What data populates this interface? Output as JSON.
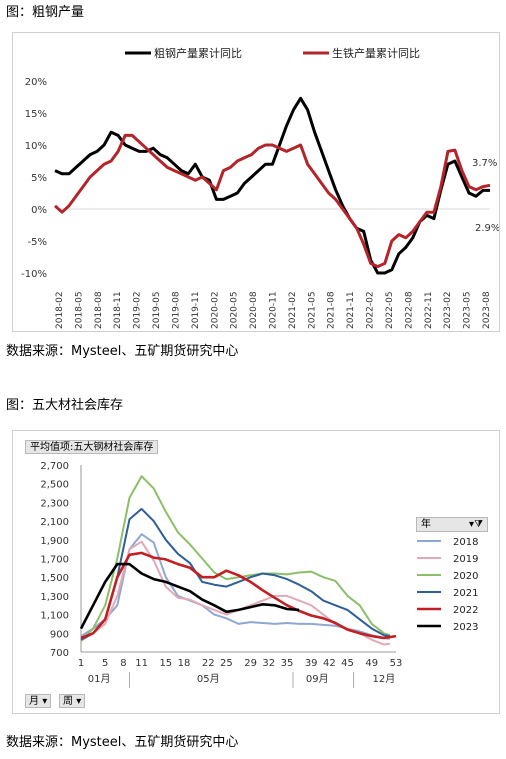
{
  "figure1": {
    "caption": "图：粗钢产量",
    "source": "数据来源：Mysteel、五矿期货研究中心"
  },
  "figure2": {
    "caption": "图：五大材社会库存",
    "source": "数据来源：Mysteel、五矿期货研究中心",
    "pivot_title": "平均值项:五大钢材社会库存",
    "legend_header": "年",
    "field_buttons": [
      "月",
      "周"
    ],
    "month_labels": [
      "01月",
      "05月",
      "09月",
      "12月"
    ]
  },
  "chart_data": [
    {
      "type": "line",
      "title": "",
      "ylim": [
        -10,
        20
      ],
      "yticks": [
        "20%",
        "15%",
        "10%",
        "5%",
        "0%",
        "-5%",
        "-10%"
      ],
      "xtick_labels": [
        "2018-02",
        "2018-05",
        "2018-08",
        "2018-11",
        "2019-02",
        "2019-05",
        "2019-08",
        "2019-11",
        "2020-02",
        "2020-05",
        "2020-08",
        "2020-11",
        "2021-02",
        "2021-05",
        "2021-08",
        "2021-11",
        "2022-02",
        "2022-05",
        "2022-08",
        "2022-11",
        "2023-02",
        "2023-05",
        "2023-08"
      ],
      "legend": "top",
      "annotations": [
        "3.7%",
        "2.9%"
      ],
      "series": [
        {
          "name": "粗钢产量累计同比",
          "color": "#000000",
          "values": [
            6.0,
            5.5,
            5.5,
            6.5,
            7.5,
            8.5,
            9.0,
            10.0,
            12.0,
            11.5,
            10.0,
            9.5,
            9.0,
            9.0,
            9.5,
            8.5,
            8.0,
            7.0,
            6.0,
            5.5,
            7.0,
            5.0,
            4.5,
            1.5,
            1.5,
            2.0,
            2.5,
            4.0,
            5.0,
            6.0,
            7.0,
            7.0,
            10.0,
            13.0,
            15.5,
            17.3,
            15.5,
            12.0,
            9.0,
            6.0,
            3.0,
            0.5,
            -1.5,
            -3.0,
            -3.5,
            -8.0,
            -10.0,
            -10.0,
            -9.5,
            -7.0,
            -6.0,
            -4.5,
            -2.0,
            -1.0,
            -1.5,
            3.0,
            7.0,
            7.5,
            5.0,
            2.5,
            2.0,
            2.9,
            2.9
          ]
        },
        {
          "name": "生铁产量累计同比",
          "color": "#b3242b",
          "values": [
            0.5,
            -0.5,
            0.5,
            2.0,
            3.5,
            5.0,
            6.0,
            7.0,
            7.5,
            9.0,
            11.5,
            11.5,
            10.5,
            9.5,
            8.5,
            7.5,
            6.5,
            6.0,
            5.5,
            5.0,
            4.5,
            5.0,
            4.0,
            3.0,
            6.0,
            6.5,
            7.5,
            8.0,
            8.5,
            9.5,
            10.0,
            10.0,
            9.5,
            9.0,
            9.5,
            10.0,
            7.0,
            5.5,
            4.0,
            2.5,
            1.5,
            0.0,
            -1.5,
            -3.0,
            -5.5,
            -8.5,
            -9.0,
            -8.5,
            -5.0,
            -4.0,
            -4.5,
            -3.5,
            -2.0,
            -0.5,
            -0.5,
            3.5,
            9.0,
            9.2,
            6.0,
            3.5,
            3.0,
            3.5,
            3.7
          ]
        }
      ]
    },
    {
      "type": "line",
      "title": "平均值项:五大钢材社会库存",
      "ylim": [
        700,
        2700
      ],
      "yticks": [
        "2,700",
        "2,500",
        "2,300",
        "2,100",
        "1,900",
        "1,700",
        "1,500",
        "1,300",
        "1,100",
        "900",
        "700"
      ],
      "xticks": [
        1,
        5,
        8,
        11,
        15,
        18,
        22,
        25,
        29,
        32,
        35,
        39,
        42,
        45,
        49,
        53
      ],
      "legend": "right",
      "series": [
        {
          "name": "2018",
          "color": "#8fa8d2",
          "x": [
            1,
            3,
            5,
            7,
            9,
            11,
            13,
            15,
            17,
            19,
            21,
            23,
            25,
            27,
            29,
            31,
            33,
            35,
            37,
            39,
            41,
            43,
            45,
            47,
            49,
            51,
            52
          ],
          "values": [
            870,
            950,
            1050,
            1200,
            1800,
            1960,
            1870,
            1500,
            1300,
            1250,
            1200,
            1100,
            1060,
            1000,
            1020,
            1010,
            1000,
            1010,
            1000,
            1000,
            990,
            980,
            950,
            920,
            880,
            850,
            840
          ]
        },
        {
          "name": "2019",
          "color": "#e2a9b6",
          "x": [
            1,
            3,
            5,
            7,
            9,
            11,
            13,
            15,
            17,
            19,
            21,
            23,
            25,
            27,
            29,
            31,
            33,
            35,
            37,
            39,
            41,
            43,
            45,
            47,
            49,
            51,
            52
          ],
          "values": [
            820,
            900,
            1000,
            1300,
            1800,
            1880,
            1680,
            1400,
            1280,
            1260,
            1200,
            1150,
            1100,
            1150,
            1200,
            1250,
            1300,
            1300,
            1250,
            1200,
            1100,
            1000,
            950,
            900,
            830,
            780,
            790
          ]
        },
        {
          "name": "2020",
          "color": "#8cbf6a",
          "x": [
            1,
            3,
            5,
            7,
            9,
            11,
            13,
            15,
            17,
            19,
            21,
            23,
            25,
            27,
            29,
            31,
            33,
            35,
            37,
            39,
            41,
            43,
            45,
            47,
            49,
            51,
            52
          ],
          "values": [
            820,
            950,
            1200,
            1700,
            2350,
            2580,
            2450,
            2200,
            1980,
            1850,
            1700,
            1550,
            1480,
            1500,
            1520,
            1540,
            1540,
            1530,
            1550,
            1560,
            1500,
            1460,
            1300,
            1200,
            1000,
            900,
            880
          ]
        },
        {
          "name": "2021",
          "color": "#2e5f97",
          "x": [
            1,
            3,
            5,
            7,
            9,
            11,
            13,
            15,
            17,
            19,
            21,
            23,
            25,
            27,
            29,
            31,
            33,
            35,
            37,
            39,
            41,
            43,
            45,
            47,
            49,
            51,
            52
          ],
          "values": [
            830,
            900,
            1050,
            1500,
            2120,
            2230,
            2100,
            1900,
            1750,
            1650,
            1450,
            1420,
            1400,
            1450,
            1500,
            1540,
            1520,
            1480,
            1420,
            1350,
            1250,
            1200,
            1150,
            1050,
            950,
            880,
            870
          ]
        },
        {
          "name": "2022",
          "color": "#c01f23",
          "x": [
            1,
            3,
            5,
            7,
            9,
            11,
            13,
            15,
            17,
            19,
            21,
            23,
            25,
            27,
            29,
            31,
            33,
            35,
            37,
            39,
            41,
            43,
            45,
            47,
            49,
            51,
            53
          ],
          "values": [
            850,
            900,
            1050,
            1500,
            1740,
            1760,
            1710,
            1690,
            1640,
            1600,
            1500,
            1500,
            1570,
            1520,
            1450,
            1360,
            1280,
            1200,
            1140,
            1090,
            1060,
            1010,
            940,
            900,
            870,
            850,
            870
          ]
        },
        {
          "name": "2023",
          "color": "#000000",
          "x": [
            1,
            3,
            5,
            7,
            9,
            11,
            13,
            15,
            17,
            19,
            21,
            23,
            25,
            27,
            29,
            31,
            33,
            35,
            37
          ],
          "values": [
            950,
            1200,
            1450,
            1640,
            1640,
            1540,
            1480,
            1450,
            1400,
            1350,
            1260,
            1200,
            1130,
            1150,
            1180,
            1210,
            1200,
            1160,
            1150
          ]
        }
      ]
    }
  ]
}
